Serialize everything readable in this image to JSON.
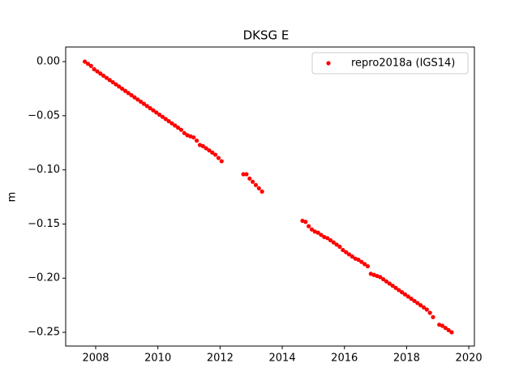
{
  "chart_data": {
    "type": "scatter",
    "title": "DKSG E",
    "y_label": "m",
    "legend_position": "upper right",
    "xlim": [
      2007.035,
      2020.18
    ],
    "ylim": [
      -0.2627,
      0.0135
    ],
    "xticks": [
      2008,
      2010,
      2012,
      2014,
      2016,
      2018,
      2020
    ],
    "yticks": [
      {
        "value": 0,
        "label": "0.00"
      },
      {
        "value": -0.05,
        "label": "−0.05"
      },
      {
        "value": -0.1,
        "label": "−0.10"
      },
      {
        "value": -0.15,
        "label": "−0.15"
      },
      {
        "value": -0.2,
        "label": "−0.20"
      },
      {
        "value": -0.25,
        "label": "−0.25"
      }
    ],
    "series": [
      {
        "name": "repro2018a (IGS14)",
        "color": "#ff0000",
        "x": [
          2007.65,
          2007.75,
          2007.85,
          2007.95,
          2008.05,
          2008.15,
          2008.25,
          2008.35,
          2008.45,
          2008.55,
          2008.65,
          2008.75,
          2008.85,
          2008.95,
          2009.05,
          2009.15,
          2009.25,
          2009.35,
          2009.45,
          2009.55,
          2009.65,
          2009.75,
          2009.85,
          2009.95,
          2010.05,
          2010.15,
          2010.25,
          2010.35,
          2010.45,
          2010.55,
          2010.65,
          2010.75,
          2010.85,
          2010.95,
          2011.05,
          2011.15,
          2011.25,
          2011.35,
          2011.45,
          2011.55,
          2011.65,
          2011.75,
          2011.85,
          2011.95,
          2012.05,
          2012.75,
          2012.85,
          2012.95,
          2013.05,
          2013.15,
          2013.25,
          2013.35,
          2014.65,
          2014.75,
          2014.85,
          2014.95,
          2015.05,
          2015.15,
          2015.25,
          2015.35,
          2015.45,
          2015.55,
          2015.65,
          2015.75,
          2015.85,
          2015.95,
          2016.05,
          2016.15,
          2016.25,
          2016.35,
          2016.45,
          2016.55,
          2016.65,
          2016.75,
          2016.85,
          2016.95,
          2017.05,
          2017.15,
          2017.25,
          2017.35,
          2017.45,
          2017.55,
          2017.65,
          2017.75,
          2017.85,
          2017.95,
          2018.05,
          2018.15,
          2018.25,
          2018.35,
          2018.45,
          2018.55,
          2018.65,
          2018.75,
          2018.85,
          2019.05,
          2019.15,
          2019.25,
          2019.35,
          2019.45
        ],
        "values": [
          0.0,
          -0.002,
          -0.004,
          -0.007,
          -0.009,
          -0.011,
          -0.013,
          -0.015,
          -0.017,
          -0.019,
          -0.021,
          -0.023,
          -0.025,
          -0.027,
          -0.029,
          -0.031,
          -0.033,
          -0.035,
          -0.037,
          -0.039,
          -0.041,
          -0.043,
          -0.045,
          -0.047,
          -0.049,
          -0.051,
          -0.053,
          -0.055,
          -0.057,
          -0.059,
          -0.061,
          -0.063,
          -0.066,
          -0.068,
          -0.069,
          -0.07,
          -0.073,
          -0.077,
          -0.078,
          -0.08,
          -0.082,
          -0.084,
          -0.086,
          -0.089,
          -0.092,
          -0.104,
          -0.104,
          -0.108,
          -0.111,
          -0.114,
          -0.117,
          -0.12,
          -0.147,
          -0.148,
          -0.152,
          -0.155,
          -0.157,
          -0.158,
          -0.16,
          -0.162,
          -0.163,
          -0.165,
          -0.167,
          -0.169,
          -0.171,
          -0.174,
          -0.176,
          -0.178,
          -0.18,
          -0.182,
          -0.183,
          -0.185,
          -0.187,
          -0.189,
          -0.196,
          -0.197,
          -0.198,
          -0.199,
          -0.201,
          -0.203,
          -0.205,
          -0.207,
          -0.209,
          -0.211,
          -0.213,
          -0.215,
          -0.217,
          -0.219,
          -0.221,
          -0.223,
          -0.225,
          -0.227,
          -0.229,
          -0.232,
          -0.236,
          -0.243,
          -0.244,
          -0.246,
          -0.248,
          -0.25
        ]
      }
    ]
  }
}
